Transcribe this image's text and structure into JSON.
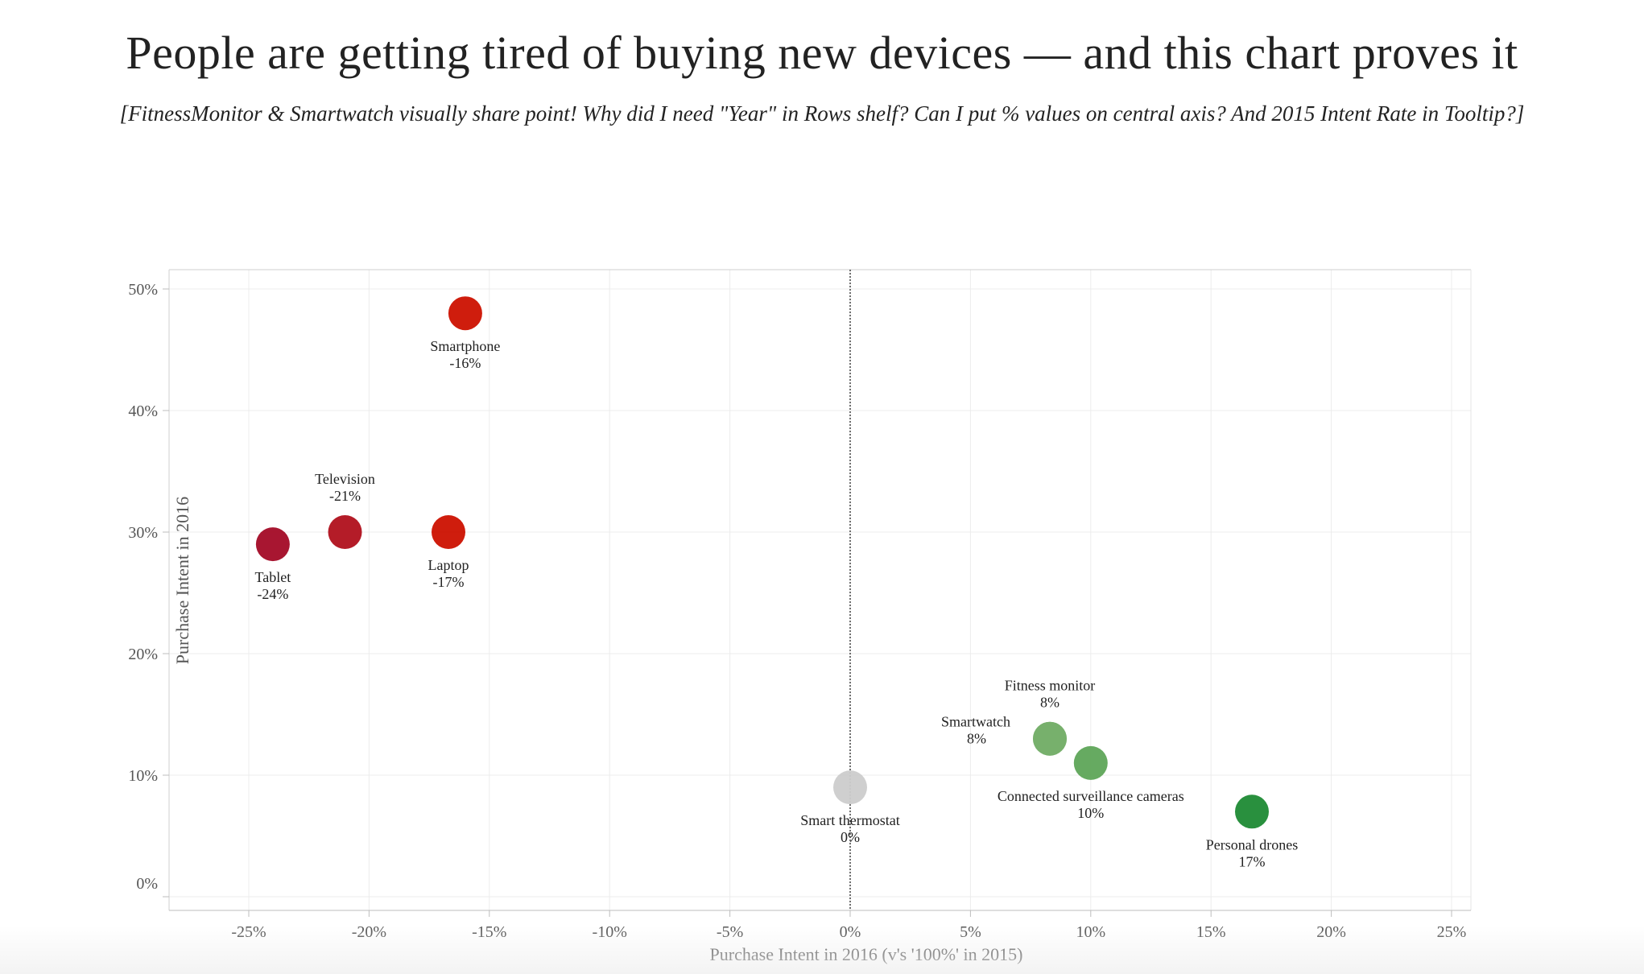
{
  "title": "People are getting tired of buying new devices —  and this chart proves it",
  "subtitle": "[FitnessMonitor & Smartwatch visually share point! Why did I need \"Year\" in Rows shelf? Can I put % values on central axis? And 2015 Intent Rate in Tooltip?]",
  "chart_data": {
    "type": "scatter",
    "xlabel": "Purchase Intent in 2016 (v's '100%' in 2015)",
    "ylabel": "Purchase Intent in 2016",
    "xlim": [
      -0.25,
      0.25
    ],
    "ylim": [
      0,
      0.5
    ],
    "x_ticks": [
      {
        "value": -0.25,
        "label": "-25%"
      },
      {
        "value": -0.2,
        "label": "-20%"
      },
      {
        "value": -0.15,
        "label": "-15%"
      },
      {
        "value": -0.1,
        "label": "-10%"
      },
      {
        "value": -0.05,
        "label": "-5%"
      },
      {
        "value": 0.0,
        "label": "0%"
      },
      {
        "value": 0.05,
        "label": "5%"
      },
      {
        "value": 0.1,
        "label": "10%"
      },
      {
        "value": 0.15,
        "label": "15%"
      },
      {
        "value": 0.2,
        "label": "20%"
      },
      {
        "value": 0.25,
        "label": "25%"
      }
    ],
    "y_ticks": [
      {
        "value": 0.0,
        "label": "0%"
      },
      {
        "value": 0.1,
        "label": "10%"
      },
      {
        "value": 0.2,
        "label": "20%"
      },
      {
        "value": 0.3,
        "label": "30%"
      },
      {
        "value": 0.4,
        "label": "40%"
      },
      {
        "value": 0.5,
        "label": "50%"
      }
    ],
    "grid": true,
    "reference_line_x": 0,
    "points": [
      {
        "name": "Smartphone",
        "value_label": "-16%",
        "x": -0.16,
        "y": 0.48,
        "color": "#cc1100",
        "label_position": "below"
      },
      {
        "name": "Television",
        "value_label": "-21%",
        "x": -0.21,
        "y": 0.3,
        "color": "#b0101c",
        "label_position": "above"
      },
      {
        "name": "Tablet",
        "value_label": "-24%",
        "x": -0.24,
        "y": 0.29,
        "color": "#a30a26",
        "label_position": "below"
      },
      {
        "name": "Laptop",
        "value_label": "-17%",
        "x": -0.167,
        "y": 0.3,
        "color": "#cc1100",
        "label_position": "below"
      },
      {
        "name": "Smart thermostat",
        "value_label": "0%",
        "x": 0.0,
        "y": 0.09,
        "color": "#cccccc",
        "label_position": "below"
      },
      {
        "name": "Fitness monitor",
        "value_label": "8%",
        "x": 0.083,
        "y": 0.13,
        "color": "#77b06c",
        "label_position": "above"
      },
      {
        "name": "Smartwatch",
        "value_label": "8%",
        "x": 0.083,
        "y": 0.13,
        "color": "#77b06c",
        "label_position": "left"
      },
      {
        "name": "Connected surveillance cameras",
        "value_label": "10%",
        "x": 0.1,
        "y": 0.11,
        "color": "#5ea558",
        "label_position": "below"
      },
      {
        "name": "Personal drones",
        "value_label": "17%",
        "x": 0.167,
        "y": 0.07,
        "color": "#1e8a34",
        "label_position": "below"
      }
    ]
  }
}
